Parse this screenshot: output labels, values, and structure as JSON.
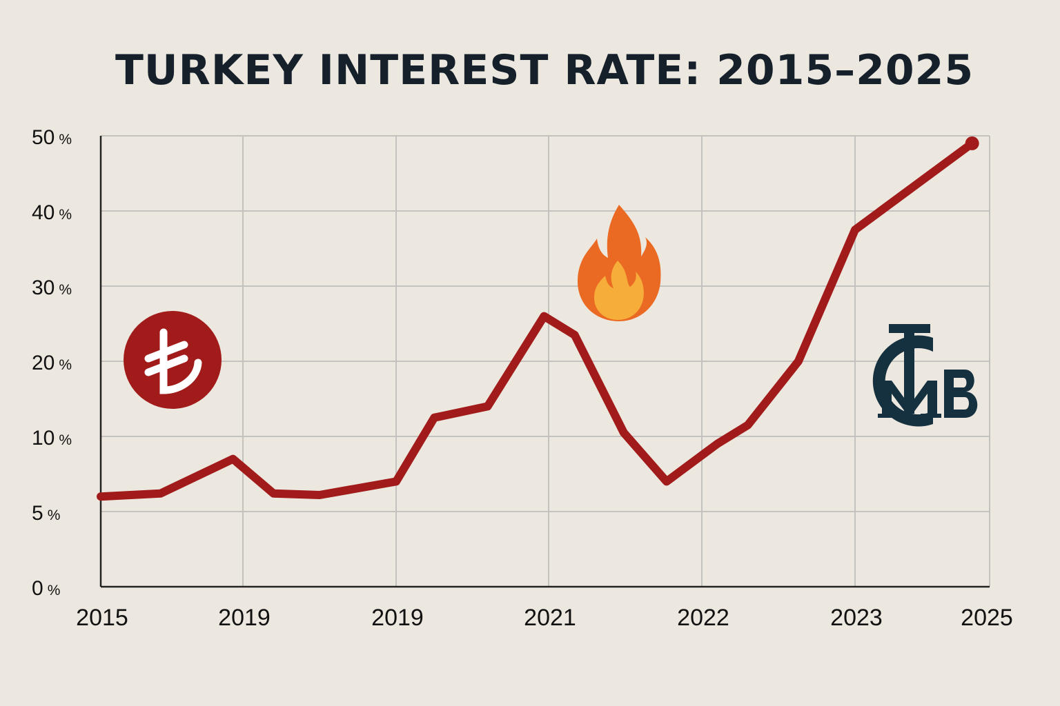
{
  "chart_data": {
    "type": "line",
    "title": "TURKEY INTEREST RATE: 2015–2025",
    "xlabel": "",
    "ylabel": "",
    "x_tick_labels": [
      "2015",
      "2019",
      "2019",
      "2021",
      "2022",
      "2023",
      "2025"
    ],
    "y_tick_labels": [
      {
        "value": "0",
        "suffix": "%"
      },
      {
        "value": "5",
        "suffix": "%"
      },
      {
        "value": "10",
        "suffix": "%"
      },
      {
        "value": "20",
        "suffix": "%"
      },
      {
        "value": "30",
        "suffix": "%"
      },
      {
        "value": "40",
        "suffix": "%"
      },
      {
        "value": "50",
        "suffix": "%"
      }
    ],
    "grid": true,
    "line_color": "#a11b1b",
    "series": [
      {
        "points": [
          {
            "t": 0.0,
            "value": 6.0
          },
          {
            "t": 0.42,
            "value": 6.2
          },
          {
            "t": 0.93,
            "value": 8.5
          },
          {
            "t": 1.2,
            "value": 6.2
          },
          {
            "t": 1.5,
            "value": 6.1
          },
          {
            "t": 2.0,
            "value": 7.0
          },
          {
            "t": 2.25,
            "value": 12.5
          },
          {
            "t": 2.6,
            "value": 14.0
          },
          {
            "t": 2.97,
            "value": 26.0
          },
          {
            "t": 3.17,
            "value": 23.5
          },
          {
            "t": 3.49,
            "value": 10.5
          },
          {
            "t": 3.77,
            "value": 7.0
          },
          {
            "t": 4.1,
            "value": 9.5
          },
          {
            "t": 4.3,
            "value": 11.5
          },
          {
            "t": 4.63,
            "value": 20.0
          },
          {
            "t": 5.0,
            "value": 37.5
          },
          {
            "t": 5.87,
            "value": 49.0
          }
        ]
      }
    ],
    "end_marker": true
  },
  "icons": {
    "currency": "lira-icon",
    "fire": "flame-icon",
    "bank": "central-bank-logo",
    "currency_color": "#a11b1b",
    "bank_color": "#15303f"
  }
}
